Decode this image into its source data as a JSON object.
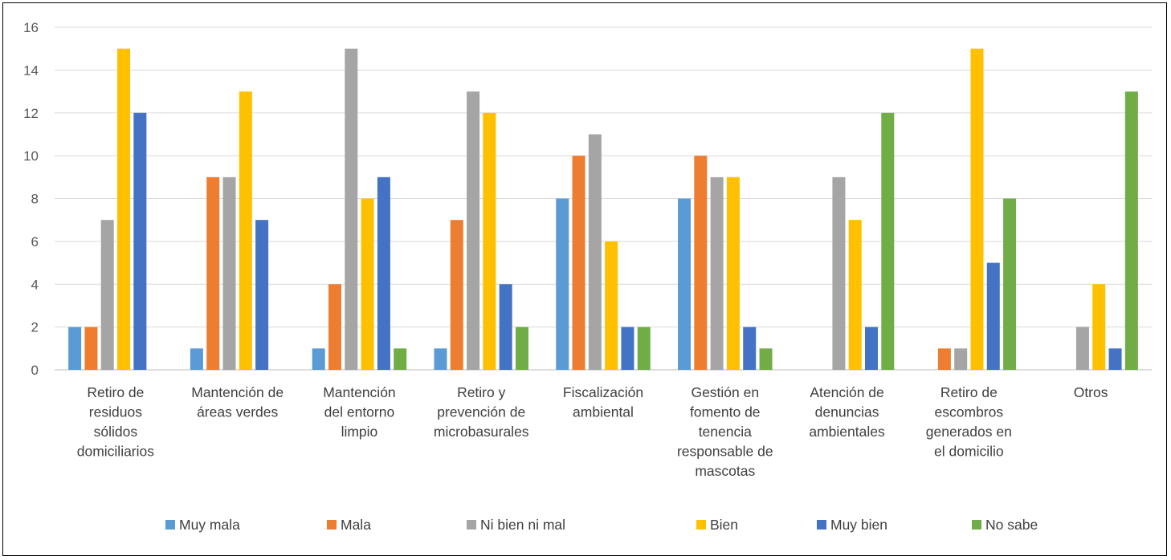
{
  "chart_data": {
    "type": "bar",
    "title": "",
    "xlabel": "",
    "ylabel": "",
    "ylim": [
      0,
      16
    ],
    "yticks": [
      0,
      2,
      4,
      6,
      8,
      10,
      12,
      14,
      16
    ],
    "grid": true,
    "legend_position": "bottom",
    "categories": [
      [
        "Retiro de",
        "residuos",
        "sólidos",
        "domiciliarios"
      ],
      [
        "Mantención de",
        "áreas verdes"
      ],
      [
        "Mantención",
        "del entorno",
        "limpio"
      ],
      [
        "Retiro y",
        "prevención de",
        "microbasurales"
      ],
      [
        "Fiscalización",
        "ambiental"
      ],
      [
        "Gestión en",
        "fomento de",
        "tenencia",
        "responsable de",
        "mascotas"
      ],
      [
        "Atención de",
        "denuncias",
        "ambientales"
      ],
      [
        "Retiro de",
        "escombros",
        "generados en",
        "el domicilio"
      ],
      [
        "Otros"
      ]
    ],
    "series": [
      {
        "name": "Muy mala",
        "color": "#5b9bd5",
        "values": [
          2,
          1,
          1,
          1,
          8,
          8,
          0,
          0,
          0
        ]
      },
      {
        "name": "Mala",
        "color": "#ed7d31",
        "values": [
          2,
          9,
          4,
          7,
          10,
          10,
          0,
          1,
          0
        ]
      },
      {
        "name": "Ni bien ni mal",
        "color": "#a5a5a5",
        "values": [
          7,
          9,
          15,
          13,
          11,
          9,
          9,
          1,
          2
        ]
      },
      {
        "name": "Bien",
        "color": "#ffc000",
        "values": [
          15,
          13,
          8,
          12,
          6,
          9,
          7,
          15,
          4
        ]
      },
      {
        "name": "Muy bien",
        "color": "#4472c4",
        "values": [
          12,
          7,
          9,
          4,
          2,
          2,
          2,
          5,
          1
        ]
      },
      {
        "name": "No sabe",
        "color": "#70ad47",
        "values": [
          0,
          0,
          1,
          2,
          2,
          1,
          12,
          8,
          13
        ]
      }
    ]
  }
}
